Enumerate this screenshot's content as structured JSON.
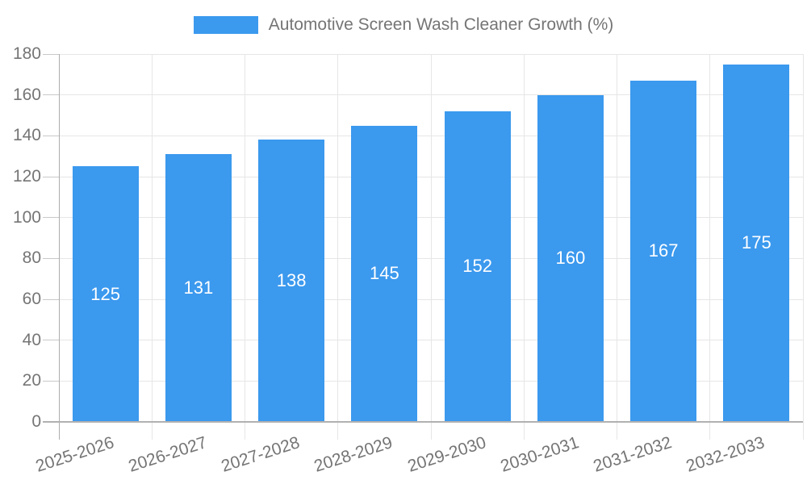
{
  "chart_data": {
    "type": "bar",
    "title": "Automotive Screen Wash Cleaner Growth (%)",
    "categories": [
      "2025-2026",
      "2026-2027",
      "2027-2028",
      "2028-2029",
      "2029-2030",
      "2030-2031",
      "2031-2032",
      "2032-2033"
    ],
    "values": [
      125,
      131,
      138,
      145,
      152,
      160,
      167,
      175
    ],
    "xlabel": "",
    "ylabel": "",
    "ylim": [
      0,
      180
    ],
    "yticks": [
      0,
      20,
      40,
      60,
      80,
      100,
      120,
      140,
      160,
      180
    ],
    "grid": true,
    "legend_position": "top",
    "legend_entries": [
      "Automotive Screen Wash Cleaner Growth (%)"
    ],
    "bar_color": "#3B99EE",
    "value_label_color": "#FFFFFF",
    "axis_label_color": "#757575",
    "gridline_color": "#E6E6E6",
    "axis_line_color": "#B1B1B1",
    "background_color": "#FFFFFF"
  }
}
